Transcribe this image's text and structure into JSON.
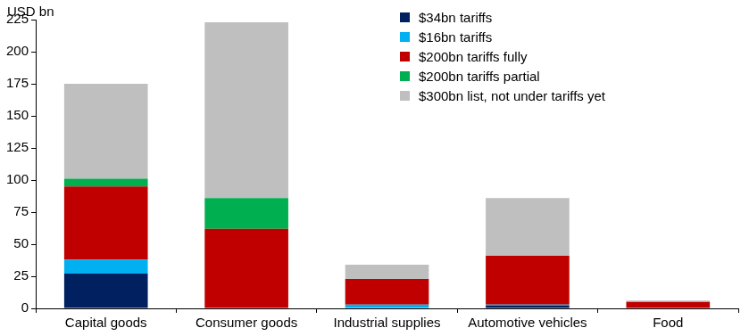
{
  "chart_data": {
    "type": "bar",
    "stacked": true,
    "ylabel": "USD bn",
    "categories": [
      "Capital goods",
      "Consumer goods",
      "Industrial supplies",
      "Automotive vehicles",
      "Food"
    ],
    "series": [
      {
        "name": "$34bn tariffs",
        "color": "#002060",
        "values": [
          27,
          0,
          0,
          2,
          0
        ]
      },
      {
        "name": "$16bn tariffs",
        "color": "#00b0f0",
        "values": [
          11,
          0,
          3,
          1,
          0
        ]
      },
      {
        "name": "$200bn tariffs fully",
        "color": "#c00000",
        "values": [
          57,
          62,
          20,
          38,
          5
        ]
      },
      {
        "name": "$200bn tariffs partial",
        "color": "#00b050",
        "values": [
          6,
          24,
          0,
          0,
          0
        ]
      },
      {
        "name": "$300bn list, not under tariffs yet",
        "color": "#bfbfbf",
        "values": [
          74,
          137,
          11,
          45,
          1
        ]
      }
    ],
    "ylim": [
      0,
      225
    ],
    "yticks": [
      0,
      25,
      50,
      75,
      100,
      125,
      150,
      175,
      200,
      225
    ],
    "grid": false,
    "legend": "upper right"
  }
}
